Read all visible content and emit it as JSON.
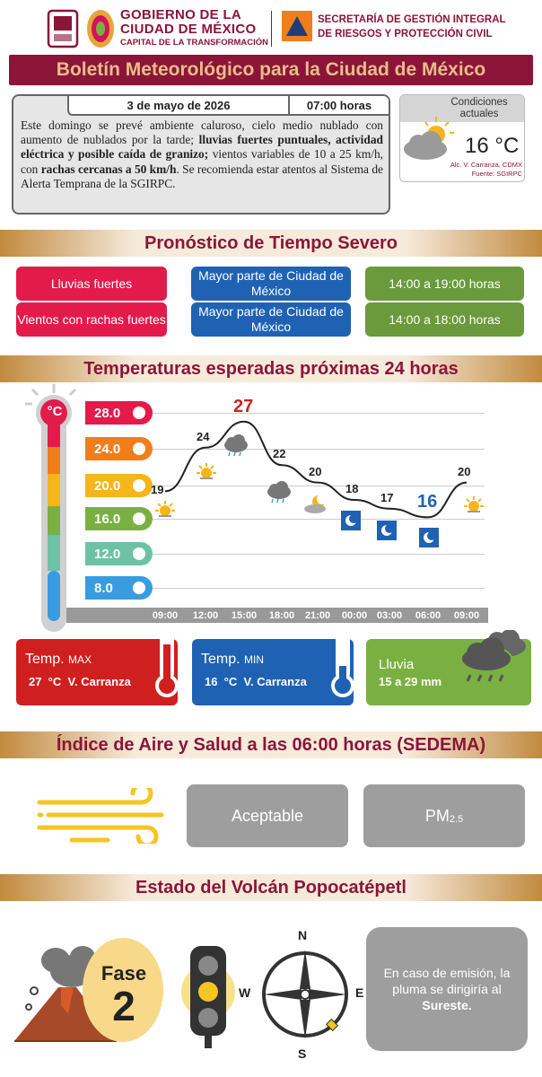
{
  "header": {
    "gov_line1": "GOBIERNO DE LA",
    "gov_line2": "CIUDAD DE MÉXICO",
    "gov_line3": "CAPITAL DE LA TRANSFORMACIÓN",
    "sec_line1": "SECRETARÍA DE GESTIÓN INTEGRAL",
    "sec_line2": "DE RIESGOS Y PROTECCIÓN CIVIL"
  },
  "title": "Boletín Meteorológico para la Ciudad de México",
  "bulletin": {
    "date": "3 de mayo de 2026",
    "time": "07:00 horas",
    "t1": "Este domingo se prevé ambiente caluroso, cielo medio nublado con aumento de nublados por la tarde; ",
    "b1": "lluvias fuertes puntuales, actividad eléctrica y posible caída de granizo;",
    "t2": " vientos variables de 10 a 25 km/h, con ",
    "b2": "rachas cercanas a 50 km/h",
    "t3": ". Se recomienda estar atentos al Sistema de Alerta Temprana de la SGIRPC."
  },
  "current": {
    "label": "Condiciones actuales",
    "temp": "16 °C",
    "location": "Alc. V. Carranza, CDMX",
    "source": "Fuente: SGIRPC"
  },
  "severe": {
    "heading": "Pronóstico de Tiempo Severo",
    "rows": [
      {
        "event": "Lluvias fuertes",
        "area": "Mayor parte de Ciudad de México",
        "time": "14:00 a 19:00 horas"
      },
      {
        "event": "Vientos con rachas fuertes",
        "area": "Mayor parte de Ciudad de México",
        "time": "14:00 a 18:00 horas"
      }
    ]
  },
  "temps_heading": "Temperaturas esperadas próximas 24 horas",
  "thermo_unit": "°C",
  "chart_data": {
    "type": "line",
    "title": "Temperaturas esperadas próximas 24 horas",
    "categories": [
      "09:00",
      "12:00",
      "15:00",
      "18:00",
      "21:00",
      "00:00",
      "03:00",
      "06:00",
      "09:00"
    ],
    "values": [
      19,
      24,
      27,
      22,
      20,
      18,
      17,
      16,
      20
    ],
    "y_ticks": [
      "28.0",
      "24.0",
      "20.0",
      "16.0",
      "12.0",
      "8.0"
    ],
    "ylim": [
      8,
      28
    ],
    "max_label": "27",
    "min_label": "16"
  },
  "cards": {
    "max_title": "Temp.",
    "max_sub": "MAX",
    "max_value": "27  °C  V. Carranza",
    "min_title": "Temp.",
    "min_sub": "MIN",
    "min_value": "16  °C  V. Carranza",
    "rain_title": "Lluvia",
    "rain_value": "15 a 29 mm"
  },
  "air": {
    "heading": "Índice de Aire y Salud a las 06:00 horas (SEDEMA)",
    "quality": "Aceptable",
    "pollutant": "PM",
    "pollutant_sub": "2.5"
  },
  "volcano": {
    "heading": "Estado del Volcán Popocatépetl",
    "phase_label": "Fase",
    "phase_num": "2",
    "compass": {
      "n": "N",
      "s": "S",
      "e": "E",
      "w": "W"
    },
    "plume_text": "En caso de emisión, la pluma se dirigiría al ",
    "plume_dir": "Sureste."
  },
  "colors": {
    "brand": "#8b1538",
    "red": "#e31b4b",
    "blue": "#1f62b3",
    "green": "#6a9a3c"
  }
}
